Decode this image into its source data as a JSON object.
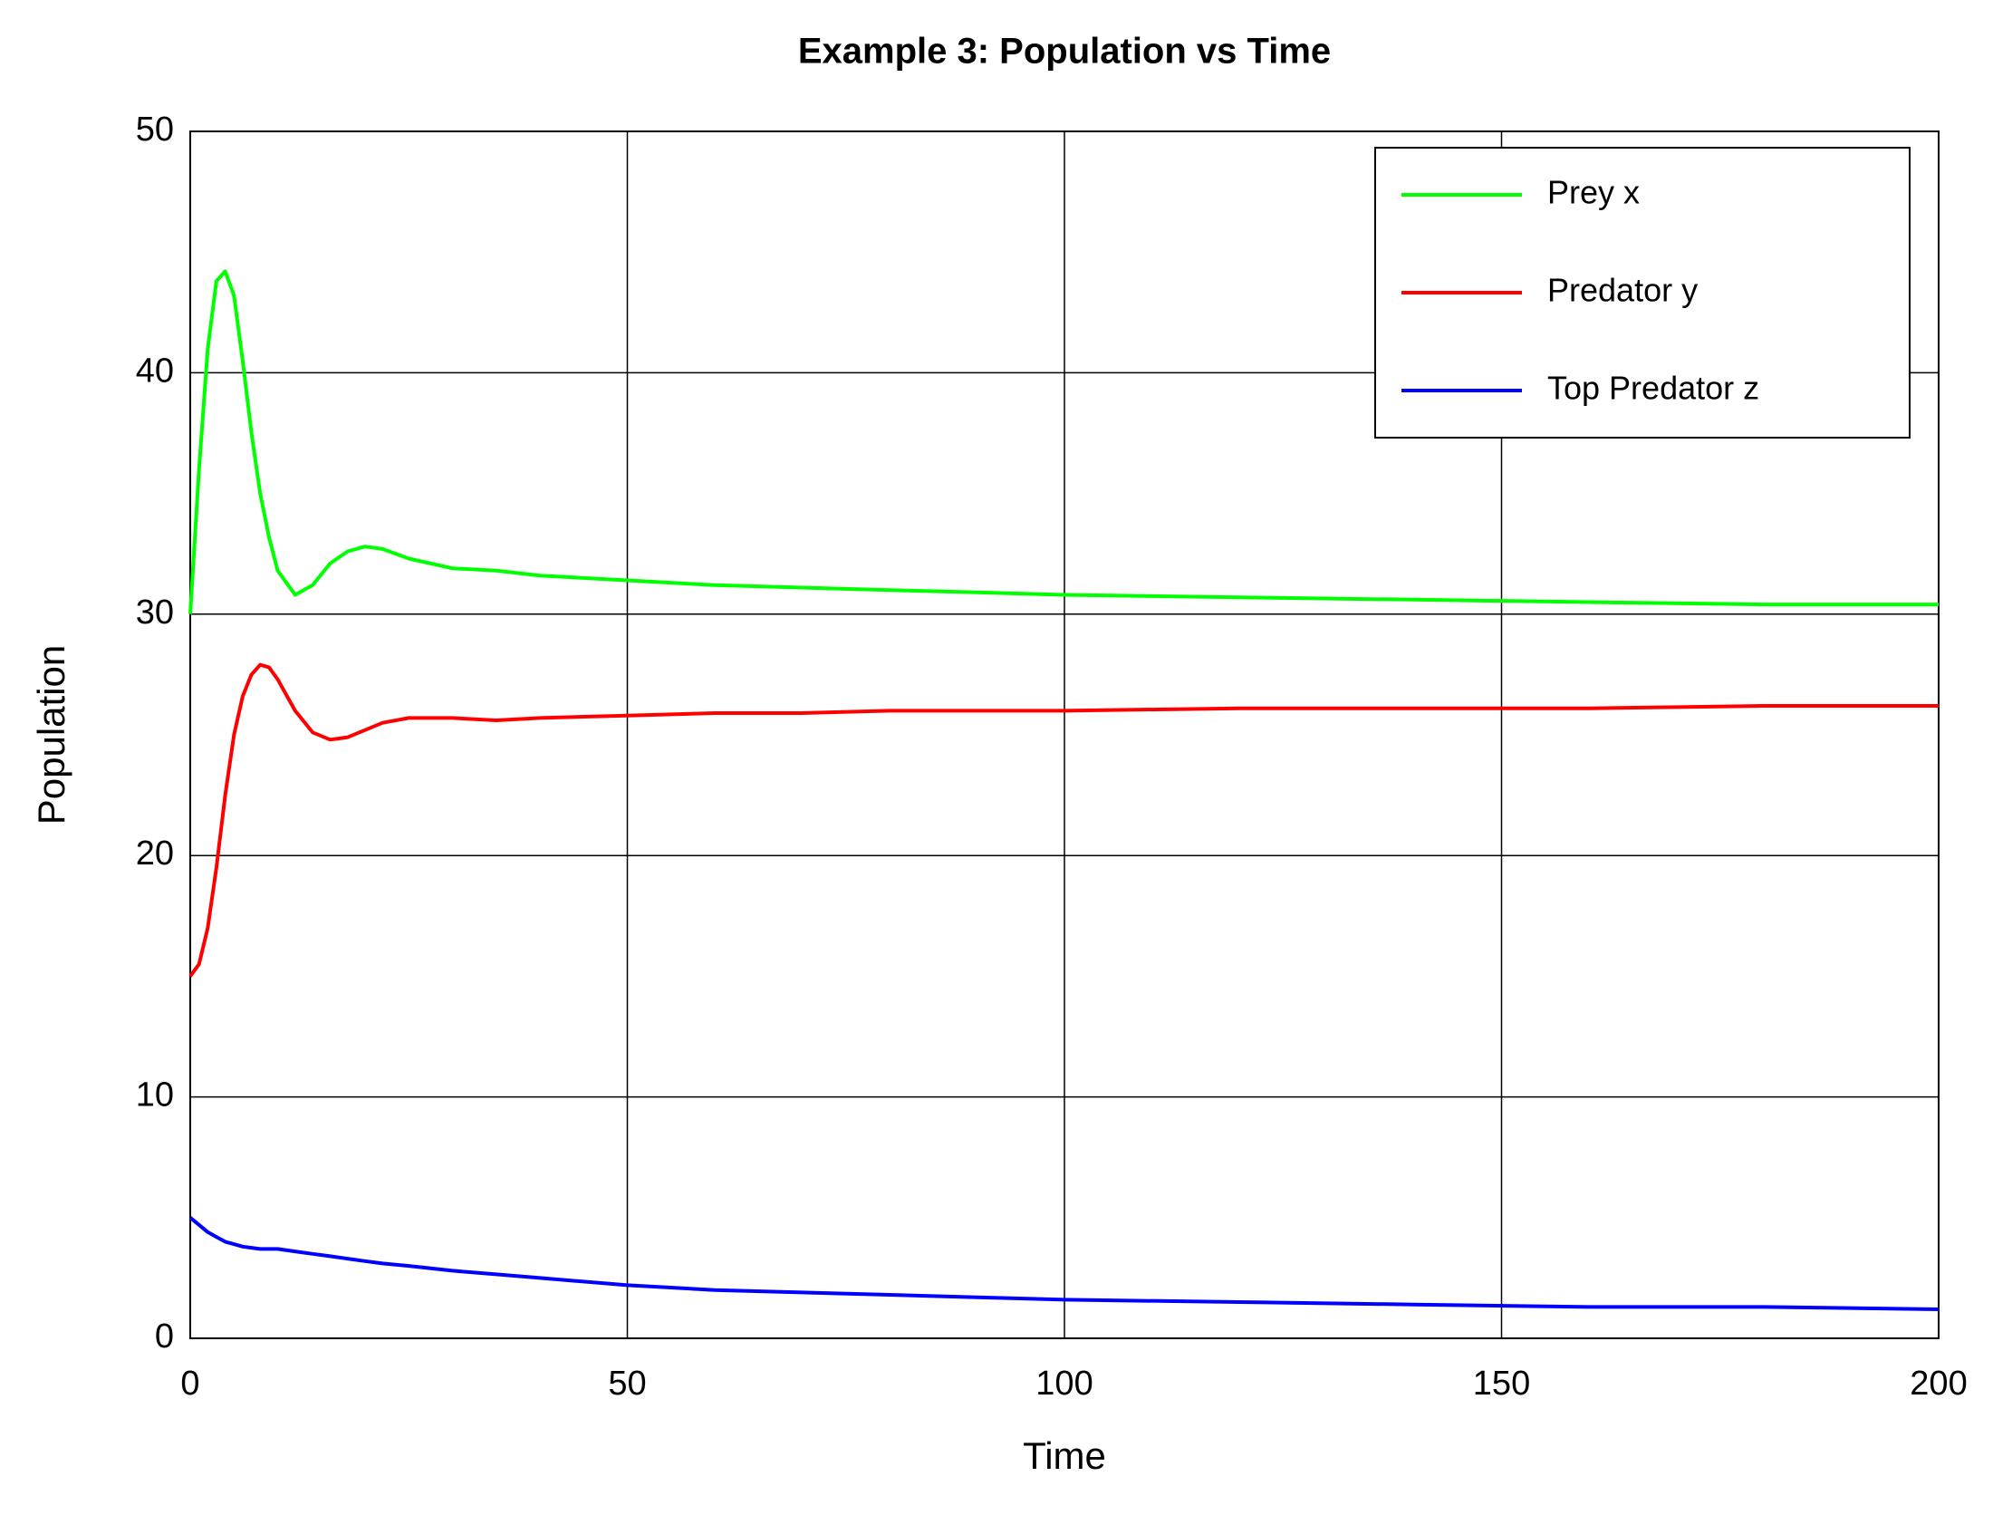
{
  "chart_data": {
    "type": "line",
    "title": "Example 3: Population vs Time",
    "x_label": "Time",
    "y_label": "Population",
    "x": [
      0,
      1,
      2,
      3,
      4,
      5,
      6,
      7,
      8,
      9,
      10,
      12,
      14,
      16,
      18,
      20,
      22,
      25,
      30,
      35,
      40,
      50,
      60,
      70,
      80,
      90,
      100,
      120,
      140,
      160,
      180,
      200
    ],
    "series": [
      {
        "name": "Prey x",
        "color": "#00ff00",
        "values": [
          30,
          36,
          41,
          43.8,
          44.2,
          43.2,
          40.5,
          37.5,
          35,
          33.2,
          31.8,
          30.8,
          31.2,
          32.1,
          32.6,
          32.8,
          32.7,
          32.3,
          31.9,
          31.8,
          31.6,
          31.4,
          31.2,
          31.1,
          31.0,
          30.9,
          30.8,
          30.7,
          30.6,
          30.5,
          30.4,
          30.4
        ]
      },
      {
        "name": "Predator y",
        "color": "#ff0000",
        "values": [
          15,
          15.5,
          17,
          19.5,
          22.5,
          25,
          26.6,
          27.5,
          27.9,
          27.8,
          27.3,
          26,
          25.1,
          24.8,
          24.9,
          25.2,
          25.5,
          25.7,
          25.7,
          25.6,
          25.7,
          25.8,
          25.9,
          25.9,
          26,
          26,
          26,
          26.1,
          26.1,
          26.1,
          26.2,
          26.2
        ]
      },
      {
        "name": "Top Predator z",
        "color": "#0000ff",
        "values": [
          5,
          4.7,
          4.4,
          4.2,
          4.0,
          3.9,
          3.8,
          3.75,
          3.7,
          3.7,
          3.7,
          3.6,
          3.5,
          3.4,
          3.3,
          3.2,
          3.1,
          3.0,
          2.8,
          2.65,
          2.5,
          2.2,
          2.0,
          1.9,
          1.8,
          1.7,
          1.6,
          1.5,
          1.4,
          1.3,
          1.3,
          1.2
        ]
      }
    ],
    "xlim": [
      0,
      200
    ],
    "xticks": [
      0,
      50,
      100,
      150,
      200
    ],
    "ylim": [
      0,
      50
    ],
    "yticks": [
      0,
      10,
      20,
      30,
      40,
      50
    ],
    "grid": true,
    "legend": "upper right"
  }
}
